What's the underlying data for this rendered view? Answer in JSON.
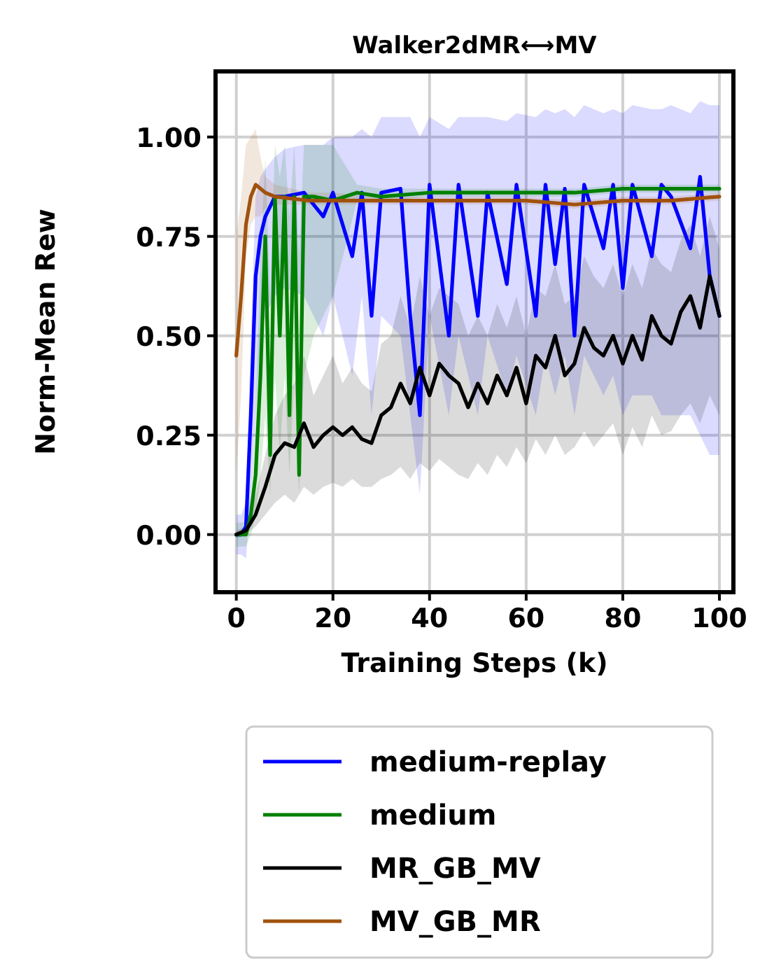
{
  "chart_data": {
    "type": "line",
    "title": "Walker2dMR⟷MV",
    "xlabel": "Training Steps (k)",
    "ylabel": "Norm-Mean Rew",
    "xlim": [
      -4.3,
      102.9
    ],
    "ylim": [
      -0.145,
      1.165
    ],
    "xticks": [
      0,
      20,
      40,
      60,
      80,
      100
    ],
    "yticks": [
      {
        "value": 0,
        "label": "0.00"
      },
      {
        "value": 0.25,
        "label": "0.25"
      },
      {
        "value": 0.5,
        "label": "0.50"
      },
      {
        "value": 0.75,
        "label": "0.75"
      },
      {
        "value": 1,
        "label": "1.00"
      }
    ],
    "grid": true,
    "legend": "bottom",
    "line_style": "solid",
    "marker": "none",
    "series": [
      {
        "name": "medium-replay",
        "color": "#0000ff",
        "x": [
          0,
          1,
          2,
          3,
          4,
          5,
          6,
          8,
          10,
          14,
          18,
          20,
          24,
          26,
          28,
          30,
          34,
          36,
          38,
          40,
          44,
          46,
          50,
          52,
          56,
          58,
          62,
          64,
          66,
          68,
          70,
          72,
          76,
          78,
          80,
          82,
          86,
          88,
          90,
          94,
          96,
          98,
          100
        ],
        "values": [
          0,
          0,
          0.02,
          0.3,
          0.65,
          0.75,
          0.8,
          0.85,
          0.85,
          0.86,
          0.8,
          0.86,
          0.7,
          0.86,
          0.55,
          0.86,
          0.87,
          0.55,
          0.3,
          0.88,
          0.5,
          0.88,
          0.55,
          0.86,
          0.63,
          0.88,
          0.55,
          0.88,
          0.68,
          0.87,
          0.5,
          0.88,
          0.72,
          0.88,
          0.62,
          0.88,
          0.7,
          0.88,
          0.85,
          0.72,
          0.9,
          0.65,
          0.55
        ],
        "lower": [
          -0.05,
          -0.05,
          -0.06,
          0.1,
          0.3,
          0.5,
          0.55,
          0.6,
          0.62,
          0.6,
          0.5,
          0.6,
          0.4,
          0.6,
          0.3,
          0.55,
          0.5,
          0.3,
          0.1,
          0.55,
          0.3,
          0.5,
          0.3,
          0.5,
          0.35,
          0.45,
          0.3,
          0.45,
          0.35,
          0.45,
          0.3,
          0.45,
          0.35,
          0.4,
          0.3,
          0.35,
          0.35,
          0.3,
          0.3,
          0.3,
          0.25,
          0.2,
          0.2
        ],
        "upper": [
          0.05,
          0.05,
          0.08,
          0.5,
          0.85,
          0.9,
          0.92,
          0.95,
          0.97,
          0.98,
          0.98,
          1.0,
          1.0,
          1.02,
          1.0,
          1.05,
          1.05,
          1.05,
          1.0,
          1.05,
          1.02,
          1.05,
          1.05,
          1.05,
          1.04,
          1.06,
          1.05,
          1.07,
          1.06,
          1.07,
          1.05,
          1.08,
          1.06,
          1.07,
          1.06,
          1.08,
          1.07,
          1.07,
          1.08,
          1.06,
          1.09,
          1.08,
          1.08
        ]
      },
      {
        "name": "medium",
        "color": "#008000",
        "x": [
          0,
          2,
          3,
          4,
          5,
          6,
          7,
          8,
          9,
          10,
          11,
          12,
          13,
          14,
          16,
          20,
          25,
          30,
          40,
          50,
          60,
          70,
          80,
          90,
          100
        ],
        "values": [
          0,
          0,
          0.05,
          0.15,
          0.4,
          0.75,
          0.2,
          0.85,
          0.5,
          0.85,
          0.3,
          0.85,
          0.15,
          0.85,
          0.85,
          0.84,
          0.86,
          0.85,
          0.86,
          0.86,
          0.86,
          0.86,
          0.87,
          0.87,
          0.87
        ],
        "lower": [
          -0.03,
          -0.03,
          0,
          0.05,
          0.15,
          0.3,
          0.1,
          0.4,
          0.2,
          0.4,
          0.15,
          0.4,
          0.1,
          0.4,
          0.5,
          0.6,
          0.84,
          0.84,
          0.85,
          0.85,
          0.85,
          0.85,
          0.86,
          0.86,
          0.86
        ],
        "upper": [
          0.03,
          0.03,
          0.1,
          0.3,
          0.7,
          0.95,
          0.6,
          0.98,
          0.9,
          0.98,
          0.8,
          0.98,
          0.7,
          0.98,
          0.98,
          0.98,
          0.88,
          0.87,
          0.87,
          0.87,
          0.87,
          0.87,
          0.88,
          0.88,
          0.88
        ]
      },
      {
        "name": "MR_GB_MV",
        "color": "#000000",
        "x": [
          0,
          2,
          4,
          6,
          8,
          10,
          12,
          14,
          16,
          18,
          20,
          22,
          24,
          26,
          28,
          30,
          32,
          34,
          36,
          38,
          40,
          42,
          44,
          46,
          48,
          50,
          52,
          54,
          56,
          58,
          60,
          62,
          64,
          66,
          68,
          70,
          72,
          74,
          76,
          78,
          80,
          82,
          84,
          86,
          88,
          90,
          92,
          94,
          96,
          98,
          100
        ],
        "values": [
          0,
          0.01,
          0.05,
          0.12,
          0.2,
          0.23,
          0.22,
          0.28,
          0.22,
          0.25,
          0.27,
          0.25,
          0.27,
          0.24,
          0.23,
          0.3,
          0.32,
          0.38,
          0.33,
          0.42,
          0.35,
          0.43,
          0.4,
          0.38,
          0.32,
          0.38,
          0.33,
          0.4,
          0.35,
          0.42,
          0.33,
          0.45,
          0.42,
          0.5,
          0.4,
          0.43,
          0.52,
          0.47,
          0.45,
          0.5,
          0.43,
          0.5,
          0.44,
          0.55,
          0.5,
          0.48,
          0.56,
          0.6,
          0.52,
          0.65,
          0.55
        ],
        "lower": [
          -0.01,
          0,
          0.02,
          0.05,
          0.08,
          0.1,
          0.08,
          0.12,
          0.1,
          0.12,
          0.13,
          0.12,
          0.14,
          0.12,
          0.12,
          0.14,
          0.15,
          0.17,
          0.14,
          0.18,
          0.16,
          0.19,
          0.17,
          0.15,
          0.14,
          0.18,
          0.15,
          0.2,
          0.17,
          0.22,
          0.18,
          0.24,
          0.2,
          0.25,
          0.2,
          0.22,
          0.26,
          0.22,
          0.25,
          0.28,
          0.2,
          0.27,
          0.22,
          0.3,
          0.25,
          0.26,
          0.3,
          0.33,
          0.28,
          0.35,
          0.3
        ],
        "upper": [
          0.01,
          0.02,
          0.1,
          0.2,
          0.3,
          0.35,
          0.38,
          0.45,
          0.35,
          0.4,
          0.45,
          0.38,
          0.42,
          0.38,
          0.36,
          0.48,
          0.5,
          0.6,
          0.52,
          0.65,
          0.55,
          0.62,
          0.6,
          0.58,
          0.5,
          0.55,
          0.5,
          0.58,
          0.52,
          0.6,
          0.5,
          0.62,
          0.6,
          0.68,
          0.58,
          0.6,
          0.7,
          0.65,
          0.62,
          0.68,
          0.6,
          0.68,
          0.62,
          0.72,
          0.68,
          0.66,
          0.74,
          0.78,
          0.7,
          0.8,
          0.72
        ]
      },
      {
        "name": "MV_GB_MR",
        "color": "#a0520d",
        "x": [
          0,
          1,
          2,
          3,
          4,
          5,
          6,
          8,
          15,
          20,
          30,
          40,
          50,
          60,
          70,
          80,
          90,
          100
        ],
        "values": [
          0.45,
          0.6,
          0.78,
          0.85,
          0.88,
          0.87,
          0.86,
          0.85,
          0.84,
          0.84,
          0.84,
          0.84,
          0.84,
          0.84,
          0.83,
          0.84,
          0.84,
          0.85
        ],
        "lower": [
          0.15,
          0.35,
          0.7,
          0.78,
          0.8,
          0.8,
          0.82,
          0.83,
          0.83,
          0.83,
          0.83,
          0.83,
          0.83,
          0.83,
          0.82,
          0.83,
          0.83,
          0.84
        ],
        "upper": [
          0.75,
          0.85,
          0.98,
          1.0,
          1.02,
          0.95,
          0.9,
          0.88,
          0.86,
          0.86,
          0.85,
          0.85,
          0.85,
          0.85,
          0.84,
          0.85,
          0.85,
          0.86
        ]
      }
    ]
  }
}
